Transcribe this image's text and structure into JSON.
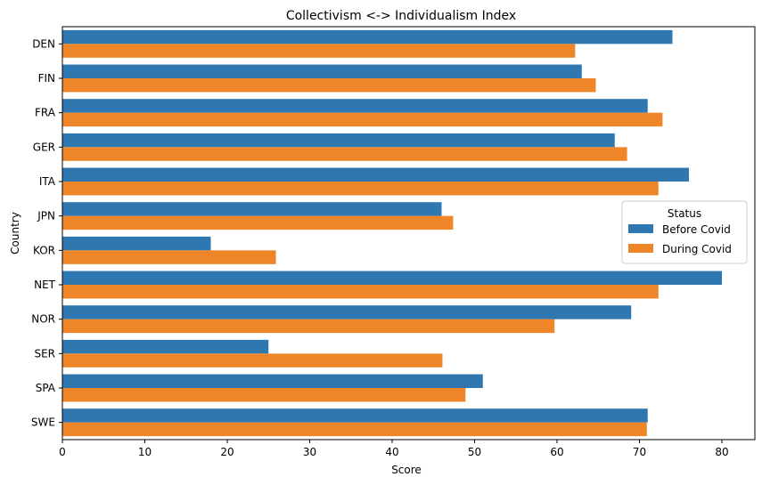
{
  "chart_data": {
    "type": "bar",
    "orientation": "horizontal",
    "title": "Collectivism <-> Individualism Index",
    "xlabel": "Score",
    "ylabel": "Country",
    "xlim": [
      0,
      84
    ],
    "xticks": [
      0,
      10,
      20,
      30,
      40,
      50,
      60,
      70,
      80
    ],
    "categories": [
      "DEN",
      "FIN",
      "FRA",
      "GER",
      "ITA",
      "JPN",
      "KOR",
      "NET",
      "NOR",
      "SER",
      "SPA",
      "SWE"
    ],
    "series": [
      {
        "name": "Before Covid",
        "color": "#2f77b0",
        "values": [
          74,
          63,
          71,
          67,
          76,
          46,
          18,
          80,
          69,
          25,
          51,
          71
        ]
      },
      {
        "name": "During Covid",
        "color": "#ee8629",
        "values": [
          62.2,
          64.7,
          72.8,
          68.5,
          72.3,
          47.4,
          25.9,
          72.3,
          59.7,
          46.1,
          48.9,
          70.9
        ]
      }
    ],
    "legend": {
      "title": "Status",
      "placement": "center-right"
    },
    "grid": false
  }
}
